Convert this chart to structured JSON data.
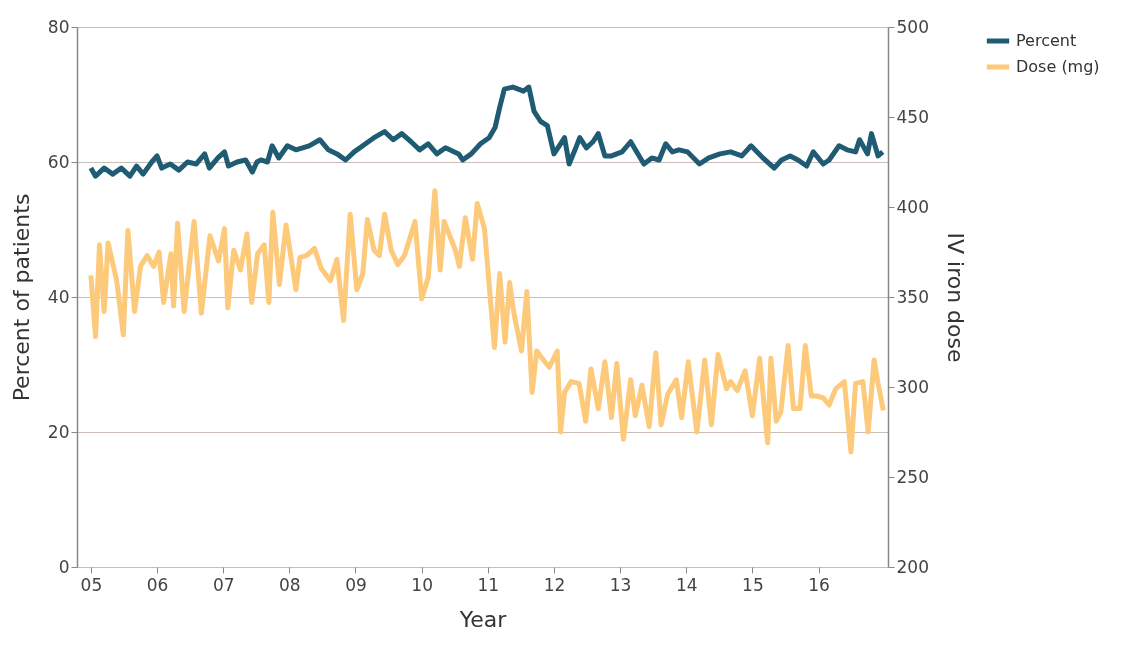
{
  "chart_data": {
    "type": "line",
    "xlabel": "Year",
    "ylabel": "Percent of patients",
    "y2label": "IV iron dose",
    "xlim": [
      2004.79,
      2017.05
    ],
    "xticks": [
      {
        "value": 2005,
        "label": "05"
      },
      {
        "value": 2006,
        "label": "06"
      },
      {
        "value": 2007,
        "label": "07"
      },
      {
        "value": 2008,
        "label": "08"
      },
      {
        "value": 2009,
        "label": "09"
      },
      {
        "value": 2010,
        "label": "10"
      },
      {
        "value": 2011,
        "label": "11"
      },
      {
        "value": 2012,
        "label": "12"
      },
      {
        "value": 2013,
        "label": "13"
      },
      {
        "value": 2014,
        "label": "14"
      },
      {
        "value": 2015,
        "label": "15"
      },
      {
        "value": 2016,
        "label": "16"
      }
    ],
    "ylim": [
      0,
      80
    ],
    "yticks": [
      0,
      20,
      40,
      60,
      80
    ],
    "y2lim": [
      200,
      500
    ],
    "y2ticks": [
      200,
      250,
      300,
      350,
      400,
      450,
      500
    ],
    "grid": "y",
    "legend": "right",
    "line_style": "solid",
    "marker": "none",
    "series": [
      {
        "name": "Percent",
        "color": "#1f5c73",
        "x": [
          2005.0,
          2005.07,
          2005.2,
          2005.33,
          2005.46,
          2005.59,
          2005.69,
          2005.79,
          2005.92,
          2006.0,
          2006.07,
          2006.2,
          2006.33,
          2006.46,
          2006.59,
          2006.72,
          2006.79,
          2006.92,
          2007.02,
          2007.08,
          2007.21,
          2007.34,
          2007.44,
          2007.51,
          2007.57,
          2007.67,
          2007.74,
          2007.84,
          2007.97,
          2008.1,
          2008.3,
          2008.46,
          2008.59,
          2008.72,
          2008.85,
          2008.98,
          2009.11,
          2009.28,
          2009.44,
          2009.57,
          2009.7,
          2009.84,
          2009.97,
          2010.1,
          2010.23,
          2010.36,
          2010.56,
          2010.62,
          2010.75,
          2010.89,
          2011.02,
          2011.11,
          2011.18,
          2011.25,
          2011.38,
          2011.54,
          2011.62,
          2011.7,
          2011.8,
          2011.9,
          2012.0,
          2012.1,
          2012.16,
          2012.23,
          2012.33,
          2012.39,
          2012.49,
          2012.59,
          2012.67,
          2012.77,
          2012.87,
          2013.03,
          2013.16,
          2013.36,
          2013.48,
          2013.59,
          2013.69,
          2013.79,
          2013.89,
          2014.02,
          2014.2,
          2014.34,
          2014.51,
          2014.67,
          2014.84,
          2014.98,
          2015.16,
          2015.33,
          2015.44,
          2015.57,
          2015.69,
          2015.82,
          2015.92,
          2016.07,
          2016.16,
          2016.31,
          2016.43,
          2016.56,
          2016.62,
          2016.74,
          2016.8,
          2016.9,
          2016.97
        ],
        "values": [
          59.1,
          57.9,
          59.1,
          58.2,
          59.1,
          57.9,
          59.4,
          58.2,
          60.0,
          60.9,
          59.1,
          59.7,
          58.8,
          60.0,
          59.7,
          61.2,
          59.1,
          60.6,
          61.5,
          59.4,
          60.0,
          60.3,
          58.5,
          60.0,
          60.3,
          60.0,
          62.4,
          60.6,
          62.4,
          61.8,
          62.4,
          63.3,
          61.8,
          61.2,
          60.3,
          61.5,
          62.4,
          63.6,
          64.5,
          63.3,
          64.2,
          63.0,
          61.8,
          62.7,
          61.2,
          62.1,
          61.2,
          60.3,
          61.2,
          62.7,
          63.6,
          65.1,
          68.1,
          70.8,
          71.1,
          70.5,
          71.1,
          67.5,
          66.0,
          65.4,
          61.2,
          62.7,
          63.6,
          59.7,
          62.1,
          63.6,
          62.1,
          63.0,
          64.2,
          60.9,
          60.9,
          61.5,
          63.0,
          59.7,
          60.6,
          60.3,
          62.7,
          61.5,
          61.8,
          61.5,
          59.7,
          60.6,
          61.2,
          61.5,
          60.9,
          62.4,
          60.6,
          59.1,
          60.3,
          60.9,
          60.3,
          59.4,
          61.5,
          59.7,
          60.3,
          62.4,
          61.8,
          61.5,
          63.3,
          61.2,
          64.2,
          60.9,
          61.5
        ]
      },
      {
        "name": "Dose (mg)",
        "color": "#fdc97a",
        "axis": "y2",
        "x": [
          2005.0,
          2005.07,
          2005.13,
          2005.2,
          2005.26,
          2005.39,
          2005.49,
          2005.56,
          2005.66,
          2005.75,
          2005.85,
          2005.95,
          2006.03,
          2006.1,
          2006.21,
          2006.25,
          2006.31,
          2006.41,
          2006.56,
          2006.67,
          2006.8,
          2006.93,
          2007.02,
          2007.07,
          2007.16,
          2007.26,
          2007.36,
          2007.43,
          2007.52,
          2007.62,
          2007.69,
          2007.75,
          2007.85,
          2007.95,
          2008.1,
          2008.16,
          2008.26,
          2008.38,
          2008.48,
          2008.62,
          2008.72,
          2008.82,
          2008.92,
          2009.02,
          2009.11,
          2009.18,
          2009.28,
          2009.36,
          2009.44,
          2009.54,
          2009.64,
          2009.74,
          2009.9,
          2010.0,
          2010.1,
          2010.2,
          2010.28,
          2010.34,
          2010.51,
          2010.57,
          2010.66,
          2010.77,
          2010.84,
          2010.95,
          2011.1,
          2011.18,
          2011.26,
          2011.33,
          2011.39,
          2011.51,
          2011.59,
          2011.67,
          2011.74,
          2011.82,
          2011.93,
          2012.05,
          2012.1,
          2012.16,
          2012.26,
          2012.38,
          2012.48,
          2012.56,
          2012.67,
          2012.77,
          2012.87,
          2012.95,
          2013.05,
          2013.16,
          2013.23,
          2013.33,
          2013.44,
          2013.54,
          2013.62,
          2013.72,
          2013.85,
          2013.93,
          2014.03,
          2014.16,
          2014.28,
          2014.38,
          2014.48,
          2014.61,
          2014.67,
          2014.77,
          2014.89,
          2015.0,
          2015.11,
          2015.23,
          2015.28,
          2015.36,
          2015.43,
          2015.54,
          2015.62,
          2015.72,
          2015.8,
          2015.89,
          2015.97,
          2016.07,
          2016.16,
          2016.26,
          2016.39,
          2016.49,
          2016.56,
          2016.67,
          2016.75,
          2016.84,
          2016.9,
          2016.98
        ],
        "values": [
          362,
          328,
          379,
          342,
          380,
          359,
          329,
          387,
          342,
          367,
          373,
          367,
          375,
          347,
          374,
          345,
          391,
          342,
          392,
          341,
          384,
          370,
          388,
          344,
          376,
          365,
          385,
          347,
          374,
          379,
          347,
          397,
          357,
          390,
          354,
          372,
          373,
          377,
          366,
          359,
          371,
          337,
          396,
          354,
          363,
          393,
          376,
          373,
          396,
          376,
          368,
          373,
          392,
          349,
          361,
          409,
          365,
          392,
          376,
          367,
          394,
          371,
          402,
          388,
          322,
          363,
          325,
          358,
          342,
          320,
          353,
          297,
          320,
          316,
          311,
          320,
          275,
          297,
          303,
          302,
          281,
          310,
          288,
          314,
          283,
          313,
          271,
          304,
          284,
          301,
          278,
          319,
          279,
          296,
          304,
          283,
          314,
          275,
          315,
          279,
          318,
          299,
          303,
          298,
          309,
          284,
          316,
          269,
          316,
          281,
          286,
          323,
          288,
          288,
          323,
          295,
          295,
          294,
          290,
          299,
          303,
          264,
          302,
          303,
          275,
          315,
          302,
          287
        ]
      }
    ]
  }
}
